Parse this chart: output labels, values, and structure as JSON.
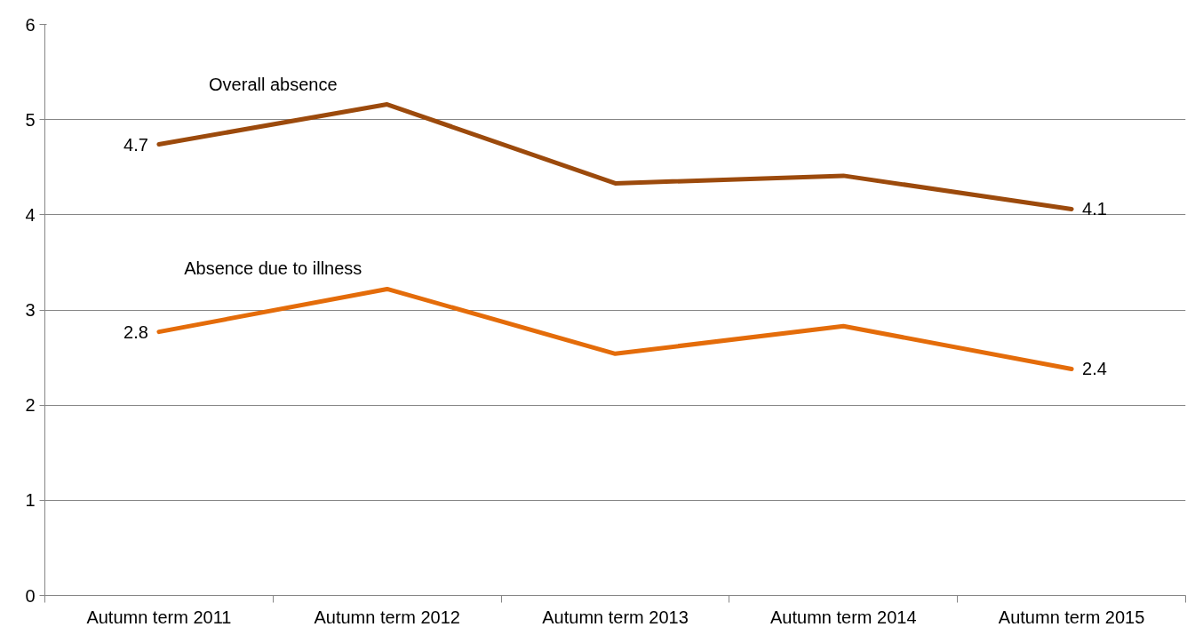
{
  "chart_data": {
    "type": "line",
    "categories": [
      "Autumn term 2011",
      "Autumn term 2012",
      "Autumn term 2013",
      "Autumn term 2014",
      "Autumn term 2015"
    ],
    "series": [
      {
        "name": "Overall absence",
        "color": "#9c4a0c",
        "values": [
          4.74,
          5.16,
          4.33,
          4.41,
          4.06
        ],
        "value_labels": [
          "4.7",
          null,
          null,
          null,
          "4.1"
        ]
      },
      {
        "name": "Absence due to illness",
        "color": "#e46c0a",
        "values": [
          2.77,
          3.22,
          2.54,
          2.83,
          2.38
        ],
        "value_labels": [
          "2.8",
          null,
          null,
          null,
          "2.4"
        ]
      }
    ],
    "ylim": [
      0,
      6
    ],
    "yticks": [
      0,
      1,
      2,
      3,
      4,
      5,
      6
    ],
    "grid": "y",
    "legend": false,
    "marker": "none",
    "line_style": "solid"
  }
}
